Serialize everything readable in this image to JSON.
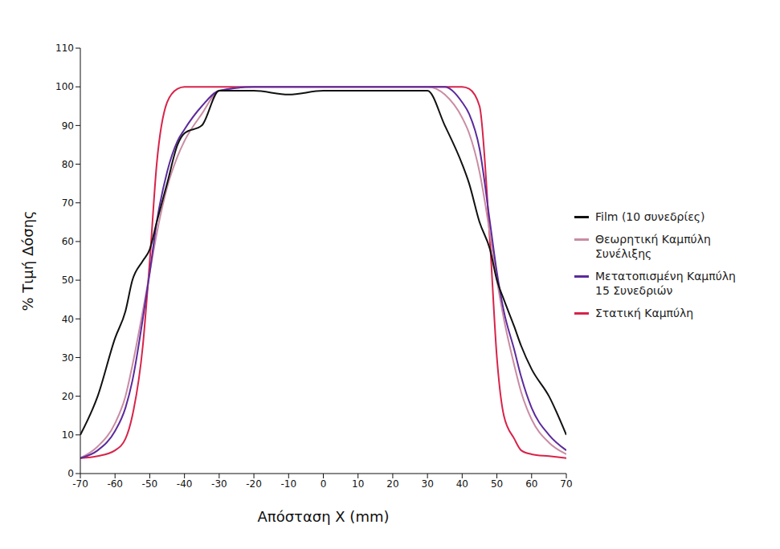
{
  "chart_data": {
    "type": "line",
    "x_label": "Απόσταση X (mm)",
    "y_label": "% Τιμή Δόσης",
    "x": [
      -70,
      -65,
      -60,
      -57,
      -55,
      -52,
      -50,
      -48,
      -45,
      -42,
      -40,
      -35,
      -30,
      -20,
      -10,
      0,
      10,
      20,
      30,
      35,
      40,
      42,
      45,
      48,
      50,
      52,
      55,
      57,
      60,
      65,
      70
    ],
    "series": [
      {
        "name": "Στατική Καμπύλη",
        "color": "#d8234a",
        "values": [
          4,
          4.5,
          6,
          9,
          15,
          33,
          55,
          80,
          96,
          99.5,
          100,
          100,
          100,
          100,
          100,
          100,
          100,
          100,
          100,
          100,
          100,
          99.5,
          95,
          60,
          30,
          15,
          9,
          6,
          5,
          4.5,
          4
        ]
      },
      {
        "name": "Θεωρητική Καμπύλη Συνέλιξης",
        "color": "#c98ca3",
        "values": [
          4,
          7,
          13,
          20,
          28,
          42,
          52,
          62,
          74,
          82,
          86,
          93,
          99,
          100,
          100,
          100,
          100,
          100,
          100,
          98,
          92,
          88,
          78,
          62,
          50,
          40,
          28,
          21,
          14,
          8,
          5
        ]
      },
      {
        "name": "Μετατοπισμένη Καμπύλη 15 Συνεδριών",
        "color": "#5b2a9c",
        "values": [
          4,
          6,
          11,
          17,
          24,
          40,
          52,
          65,
          78,
          86,
          89,
          95,
          99,
          100,
          100,
          100,
          100,
          100,
          100,
          100,
          96,
          93,
          84,
          65,
          52,
          42,
          32,
          25,
          17,
          10,
          6
        ]
      },
      {
        "name": "Film (10 συνεδρίες)",
        "color": "#111111",
        "values": [
          10,
          20,
          35,
          42,
          50,
          55,
          58,
          65,
          75,
          85,
          88,
          90,
          99,
          99,
          98,
          99,
          99,
          99,
          99,
          90,
          80,
          75,
          65,
          58,
          50,
          45,
          38,
          33,
          27,
          20,
          10
        ]
      }
    ],
    "xlim": [
      -70,
      70
    ],
    "xticks": [
      -70,
      -60,
      -50,
      -40,
      -30,
      -20,
      -10,
      0,
      10,
      20,
      30,
      40,
      50,
      60,
      70
    ],
    "ylim": [
      0,
      110
    ],
    "yticks": [
      0,
      10,
      20,
      30,
      40,
      50,
      60,
      70,
      80,
      90,
      100,
      110
    ],
    "grid": false,
    "legend": "right"
  }
}
